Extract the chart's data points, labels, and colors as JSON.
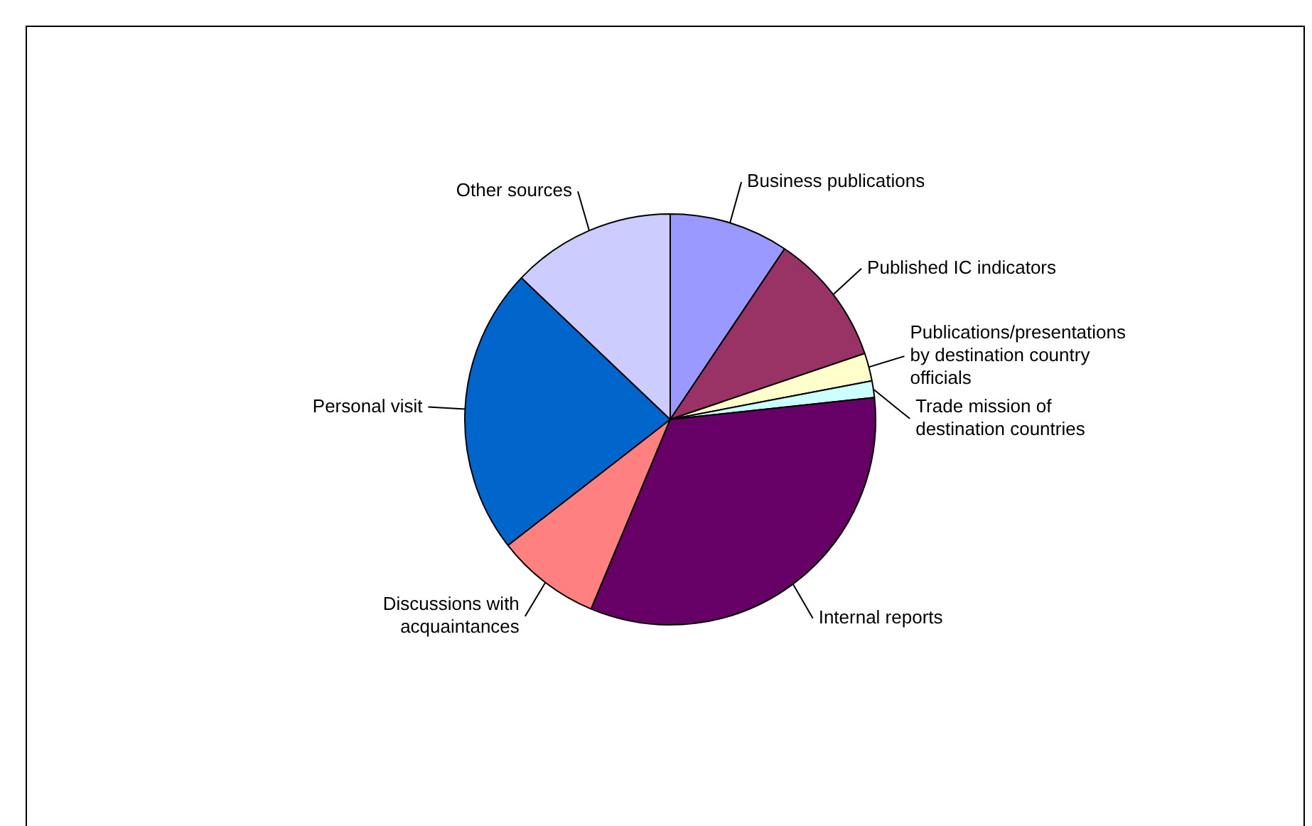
{
  "chart_data": {
    "type": "pie",
    "categories": [
      "Business publications",
      "Published IC indicators",
      "Publications/presentations by destination country officials",
      "Trade mission of destination countries",
      "Internal reports",
      "Discussions with acquaintances",
      "Personal visit",
      "Other sources"
    ],
    "values": [
      9.4,
      10.4,
      2.2,
      1.3,
      33,
      8.2,
      22.6,
      12.9
    ],
    "colors": [
      "#9999ff",
      "#993366",
      "#ffffcc",
      "#ccffff",
      "#660066",
      "#ff8080",
      "#0066cc",
      "#ccccff"
    ],
    "legend": false
  }
}
